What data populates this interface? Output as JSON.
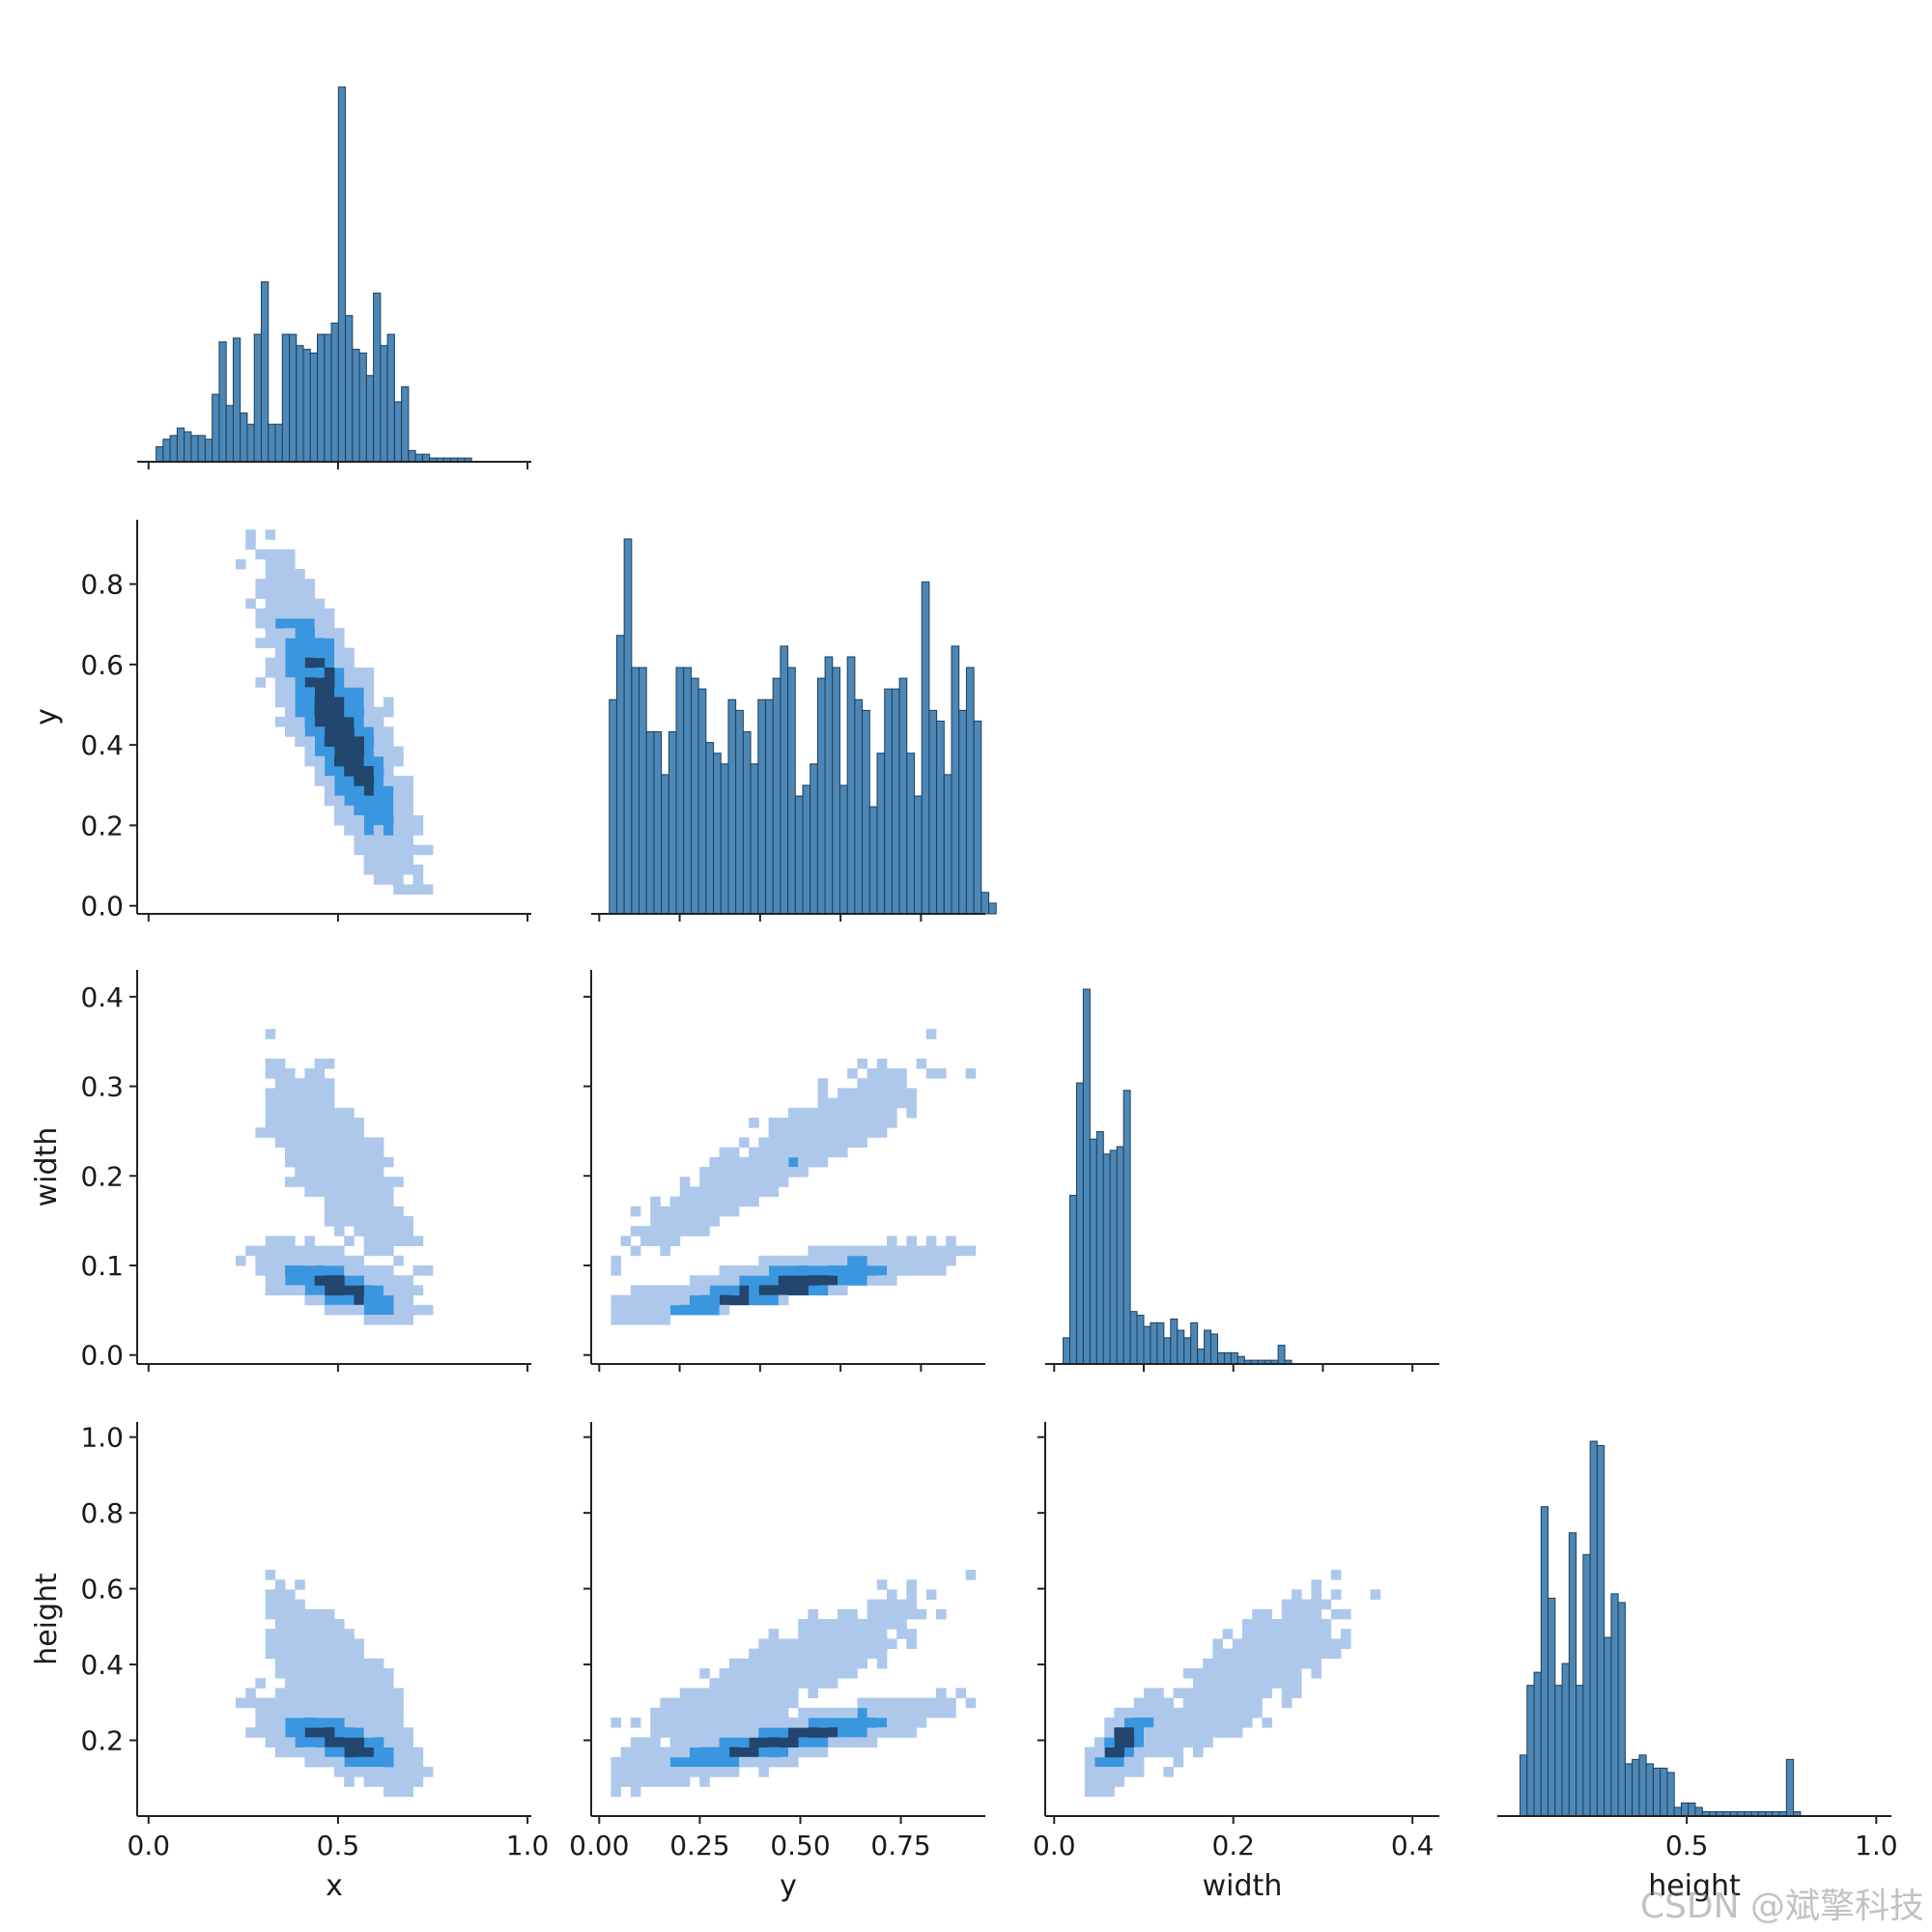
{
  "colors": {
    "bar_fill": "#4c87b6",
    "bar_edge": "#1f3f5a",
    "heat_low": "#aec8ec",
    "heat_mid": "#3a96de",
    "heat_high": "#22466e",
    "axis": "#222222"
  },
  "watermark": "CSDN @斌擎科技",
  "chart_data": {
    "type": "pairplot",
    "variables": [
      "x",
      "y",
      "width",
      "height"
    ],
    "corner": true,
    "diag_kind": "hist",
    "offdiag_kind": "hist2d",
    "ranges": {
      "x": [
        -0.03,
        1.01
      ],
      "y": [
        -0.02,
        0.96
      ],
      "width": [
        -0.01,
        0.43
      ],
      "height": [
        0.0,
        1.04
      ]
    },
    "ticks": {
      "x": {
        "values": [
          0.0,
          0.5,
          1.0
        ],
        "labels": [
          "0.0",
          "0.5",
          "1.0"
        ]
      },
      "y": {
        "values": [
          0.0,
          0.2,
          0.4,
          0.6,
          0.8
        ],
        "labels": [
          "0.0",
          "0.2",
          "0.4",
          "0.6",
          "0.8"
        ]
      },
      "y_bottom": {
        "values": [
          0.0,
          0.25,
          0.5,
          0.75
        ],
        "labels": [
          "0.00",
          "0.25",
          "0.50",
          "0.75"
        ]
      },
      "width": {
        "values": [
          0.0,
          0.1,
          0.2,
          0.3,
          0.4
        ],
        "labels": [
          "0.0",
          "0.1",
          "0.2",
          "0.3",
          "0.4"
        ]
      },
      "width_bottom": {
        "values": [
          0.0,
          0.2,
          0.4
        ],
        "labels": [
          "0.0",
          "0.2",
          "0.4"
        ]
      },
      "height": {
        "values": [
          0.2,
          0.4,
          0.6,
          0.8,
          1.0
        ],
        "labels": [
          "0.2",
          "0.4",
          "0.6",
          "0.8",
          "1.0"
        ]
      },
      "height_bottom": {
        "values": [
          0.5,
          1.0
        ],
        "labels": [
          "0.5",
          "1.0"
        ]
      }
    },
    "axis_labels": {
      "x": "x",
      "y": "y",
      "width": "width",
      "height": "height"
    },
    "diagonal_hist": {
      "x": {
        "bin_start": 0.02,
        "bin_width": 0.0185,
        "counts": [
          4,
          6,
          7,
          9,
          8,
          7,
          7,
          6,
          18,
          32,
          15,
          33,
          13,
          10,
          34,
          48,
          10,
          10,
          34,
          34,
          31,
          30,
          29,
          34,
          34,
          37,
          100,
          39,
          30,
          29,
          23,
          45,
          31,
          34,
          16,
          20,
          3,
          2,
          2,
          1,
          1,
          1,
          1,
          1,
          1
        ]
      },
      "y": {
        "bin_start": 0.025,
        "bin_width": 0.0185,
        "counts": [
          20,
          26,
          35,
          23,
          23,
          17,
          17,
          13,
          17,
          23,
          23,
          22,
          21,
          16,
          15,
          14,
          20,
          19,
          17,
          14,
          20,
          20,
          22,
          25,
          23,
          11,
          12,
          14,
          22,
          24,
          23,
          12,
          24,
          20,
          19,
          10,
          15,
          21,
          21,
          22,
          15,
          11,
          31,
          19,
          18,
          13,
          25,
          19,
          23,
          18,
          2,
          1
        ]
      },
      "width": {
        "bin_start": 0.01,
        "bin_width": 0.0075,
        "counts": [
          7,
          45,
          75,
          100,
          60,
          62,
          56,
          57,
          58,
          73,
          14,
          13,
          10,
          11,
          11,
          7,
          12,
          9,
          7,
          11,
          4,
          9,
          8,
          3,
          3,
          3,
          2,
          1,
          1,
          1,
          1,
          1,
          5,
          1
        ]
      },
      "height": {
        "bin_start": 0.06,
        "bin_width": 0.0185,
        "counts": [
          14,
          30,
          33,
          71,
          50,
          30,
          35,
          65,
          30,
          60,
          86,
          85,
          41,
          51,
          49,
          12,
          13,
          14,
          12,
          11,
          11,
          10,
          2,
          3,
          3,
          2,
          1,
          1,
          1,
          1,
          1,
          1,
          1,
          1,
          1,
          1,
          1,
          1,
          13,
          1
        ]
      }
    },
    "density_description": {
      "y_vs_x": "negative trend; dense diagonal band from (0.35, 0.85) to (0.65, 0.05)",
      "width_vs_x": "mass concentrated at width 0.03-0.12; sparse scatter up to 0.4",
      "height_vs_x": "mass at height 0.1-0.35; sparse up to 1.0",
      "width_vs_y": "two bands increasing with y",
      "height_vs_y": "two bands increasing with y",
      "height_vs_width": "strong positive correlation"
    }
  }
}
